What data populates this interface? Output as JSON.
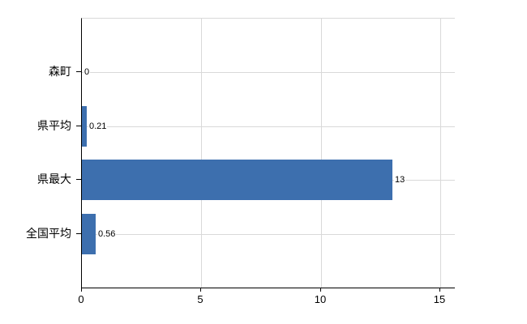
{
  "chart_data": {
    "type": "bar",
    "orientation": "horizontal",
    "title": "",
    "xlabel": "",
    "ylabel": "",
    "categories": [
      "森町",
      "県平均",
      "県最大",
      "全国平均"
    ],
    "values": [
      0,
      0.21,
      13,
      0.56
    ],
    "value_labels": [
      "0",
      "0.21",
      "13",
      "0.56"
    ],
    "xticks": [
      "0",
      "5",
      "10",
      "15"
    ],
    "xtick_values": [
      0,
      5,
      10,
      15
    ],
    "xlim": [
      0,
      15.6
    ],
    "grid": true,
    "legend": false,
    "colors": {
      "bar": "#3d6fae",
      "gridline": "#d9d9d9",
      "axis": "#000000",
      "text": "#000000",
      "background": "#ffffff"
    }
  }
}
